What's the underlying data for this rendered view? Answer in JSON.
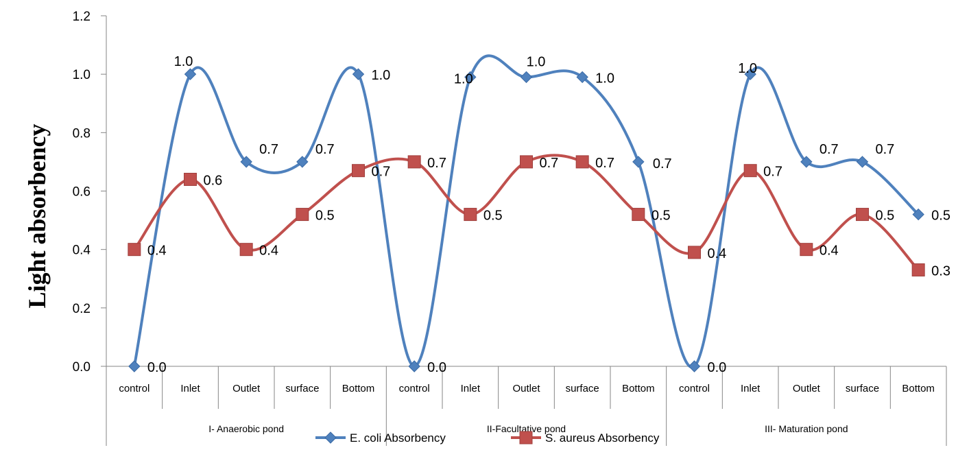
{
  "chart_data": {
    "type": "line",
    "ylabel": "Light absorbency",
    "xlabel": "",
    "ylim": [
      0,
      1.2
    ],
    "yticks": [
      "0.0",
      "0.2",
      "0.4",
      "0.6",
      "0.8",
      "1.0",
      "1.2"
    ],
    "categories": [
      "control",
      "Inlet",
      "Outlet",
      "surface",
      "Bottom",
      "control",
      "Inlet",
      "Outlet",
      "surface",
      "Bottom",
      "control",
      "Inlet",
      "Outlet",
      "surface",
      "Bottom"
    ],
    "groups": [
      "I- Anaerobic pond",
      "II-Facultative pond",
      "III- Maturation pond"
    ],
    "grid": false,
    "legend_position": "bottom",
    "smooth": true,
    "series": [
      {
        "name": "E. coli Absorbency",
        "color": "#4f81bd",
        "marker": "diamond",
        "values": [
          0.0,
          1.0,
          0.7,
          0.7,
          1.0,
          0.0,
          0.99,
          0.99,
          0.99,
          0.7,
          0.0,
          1.0,
          0.7,
          0.7,
          0.52
        ],
        "labels": [
          "0.0",
          "1.0",
          "0.7",
          "0.7",
          "1.0",
          "0.0",
          "1.0",
          "1.0",
          "1.0",
          "0.7",
          "0.0",
          "1.0",
          "0.7",
          "0.7",
          "0.5"
        ]
      },
      {
        "name": "S. aureus Absorbency",
        "color": "#c0504d",
        "marker": "square",
        "values": [
          0.4,
          0.64,
          0.4,
          0.52,
          0.67,
          0.7,
          0.52,
          0.7,
          0.7,
          0.52,
          0.39,
          0.67,
          0.4,
          0.52,
          0.33
        ],
        "labels": [
          "0.4",
          "0.6",
          "0.4",
          "0.5",
          "0.7",
          "0.7",
          "0.5",
          "0.7",
          "0.7",
          "0.5",
          "0.4",
          "0.7",
          "0.4",
          "0.5",
          "0.3"
        ]
      }
    ]
  }
}
